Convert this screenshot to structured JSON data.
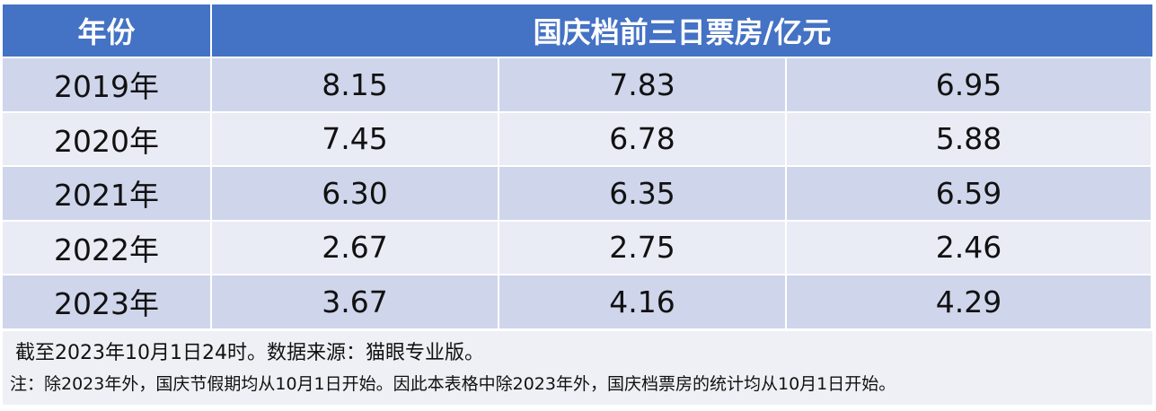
{
  "table": {
    "header": [
      "年份",
      "国庆档前三日票房/亿元"
    ],
    "rows": [
      [
        "2019年",
        "8.15",
        "7.83",
        "6.95"
      ],
      [
        "2020年",
        "7.45",
        "6.78",
        "5.88"
      ],
      [
        "2021年",
        "6.30",
        "6.35",
        "6.59"
      ],
      [
        "2022年",
        "2.67",
        "2.75",
        "2.46"
      ],
      [
        "2023年",
        "3.67",
        "4.16",
        "4.29"
      ]
    ]
  },
  "notes": [
    "截至2023年10月1日24时。数据来源：猫眼专业版。",
    "注：除2023年外，国庆节假期均从10月1日开始。因此本表格中除2023年外，国庆档票房的统计均从10月1日开始。"
  ]
}
